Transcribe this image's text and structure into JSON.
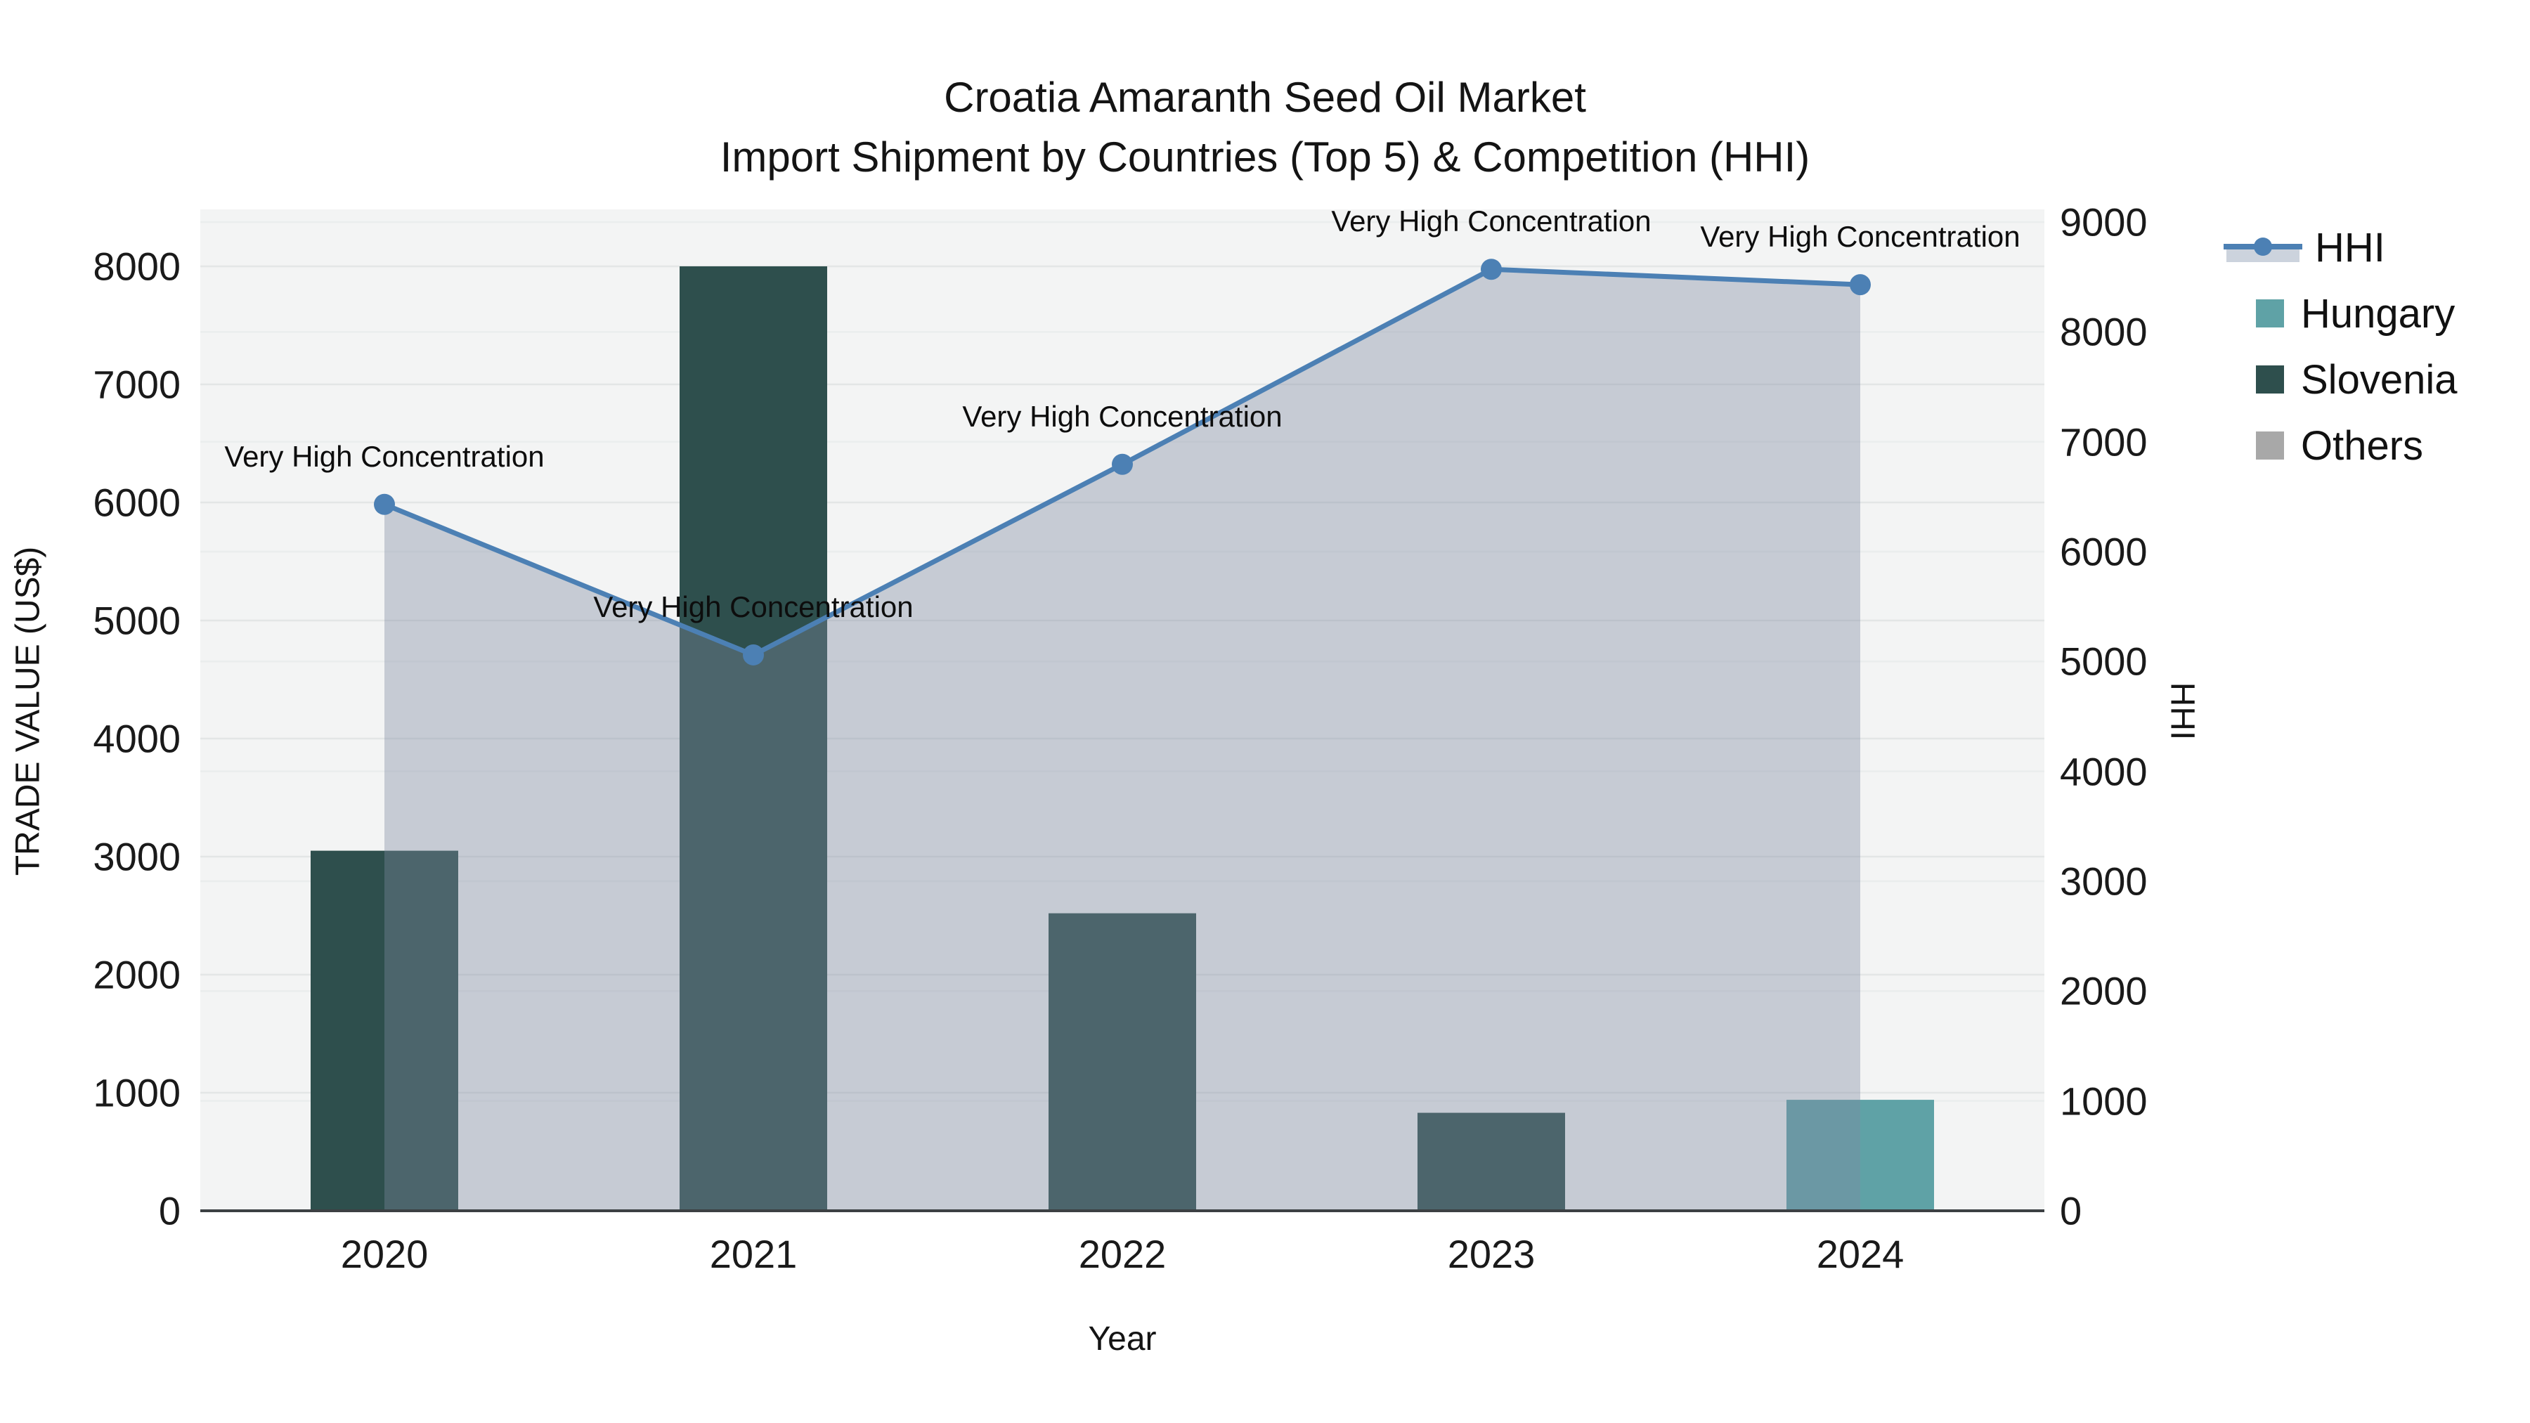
{
  "title": {
    "line1": "Croatia Amaranth Seed Oil Market",
    "line2": "Import Shipment by Countries (Top 5) & Competition (HHI)"
  },
  "axes": {
    "x": {
      "label": "Year",
      "ticks": [
        "2020",
        "2021",
        "2022",
        "2023",
        "2024"
      ]
    },
    "y_left": {
      "label": "TRADE VALUE (US$)",
      "ticks": [
        0,
        1000,
        2000,
        3000,
        4000,
        5000,
        6000,
        7000,
        8000
      ],
      "max": 8480
    },
    "y_right": {
      "label": "HHI",
      "ticks": [
        0,
        1000,
        2000,
        3000,
        4000,
        5000,
        6000,
        7000,
        8000,
        9000
      ],
      "max": 9110
    }
  },
  "legend": {
    "items": [
      {
        "label": "HHI",
        "kind": "line",
        "color": "#4C80B4",
        "fill": "#ccd3dd"
      },
      {
        "label": "Hungary",
        "kind": "swatch",
        "color": "#5FA2A6"
      },
      {
        "label": "Slovenia",
        "kind": "swatch",
        "color": "#2E4F4D"
      },
      {
        "label": "Others",
        "kind": "swatch",
        "color": "#A8A8A8"
      }
    ]
  },
  "chart_data": {
    "type": "combo-bar-line",
    "categories": [
      "2020",
      "2021",
      "2022",
      "2023",
      "2024"
    ],
    "series": [
      {
        "name": "HHI",
        "type": "line-area",
        "axis": "right",
        "color": "#4C80B4",
        "area_fill": "rgba(125,137,160,0.38)",
        "marker": "circle",
        "values": [
          6430,
          5060,
          6795,
          8570,
          8430
        ]
      },
      {
        "name": "Hungary",
        "type": "bar",
        "axis": "left",
        "color": "#5FA2A6",
        "values": [
          null,
          null,
          null,
          null,
          940
        ]
      },
      {
        "name": "Slovenia",
        "type": "bar",
        "axis": "left",
        "color": "#2E4F4D",
        "values": [
          3050,
          8000,
          2520,
          830,
          null
        ]
      },
      {
        "name": "Others",
        "type": "bar",
        "axis": "left",
        "color": "#A8A8A8",
        "values": [
          null,
          null,
          null,
          null,
          null
        ]
      }
    ],
    "annotations": [
      {
        "text": "Very High Concentration",
        "category": "2020",
        "value": 6430
      },
      {
        "text": "Very High Concentration",
        "category": "2021",
        "value": 5060
      },
      {
        "text": "Very High Concentration",
        "category": "2022",
        "value": 6795
      },
      {
        "text": "Very High Concentration",
        "category": "2023",
        "value": 8570
      },
      {
        "text": "Very High Concentration",
        "category": "2024",
        "value": 8430
      }
    ],
    "layout": {
      "plot_bg": "#f3f4f4",
      "gridline_left_color": "#e3e6e6",
      "gridline_right_color": "#eaeded",
      "baseline_color": "#3c4043",
      "xlabel": "Year",
      "ylabel_left": "TRADE VALUE (US$)",
      "ylabel_right": "HHI",
      "grid": true,
      "legend_position": "right"
    }
  }
}
